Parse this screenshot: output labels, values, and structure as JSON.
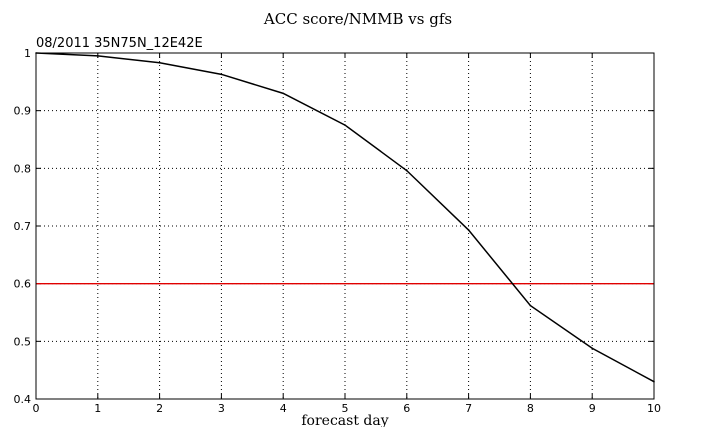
{
  "chart_data": {
    "type": "line",
    "title": "ACC score/NMMB vs gfs",
    "subtitle": "08/2011 35N75N_12E42E",
    "xlabel": "forecast day",
    "ylabel": "",
    "xlim": [
      0,
      10
    ],
    "ylim": [
      0.4,
      1.0
    ],
    "x_ticks": [
      0,
      1,
      2,
      3,
      4,
      5,
      6,
      7,
      8,
      9,
      10
    ],
    "y_ticks": [
      0.4,
      0.5,
      0.6,
      0.7,
      0.8,
      0.9,
      1.0
    ],
    "y_tick_labels": [
      "0.4",
      "0.5",
      "0.6",
      "0.7",
      "0.8",
      "0.9",
      "1"
    ],
    "grid": "dotted",
    "x": [
      0,
      1,
      2,
      3,
      4,
      5,
      6,
      7,
      8,
      9,
      10
    ],
    "series": [
      {
        "color": "#000000",
        "values": [
          1.0,
          0.995,
          0.983,
          0.963,
          0.93,
          0.875,
          0.796,
          0.693,
          0.562,
          0.488,
          0.43
        ]
      }
    ],
    "reference_line": {
      "y": 0.6,
      "color": "#e00000"
    }
  }
}
